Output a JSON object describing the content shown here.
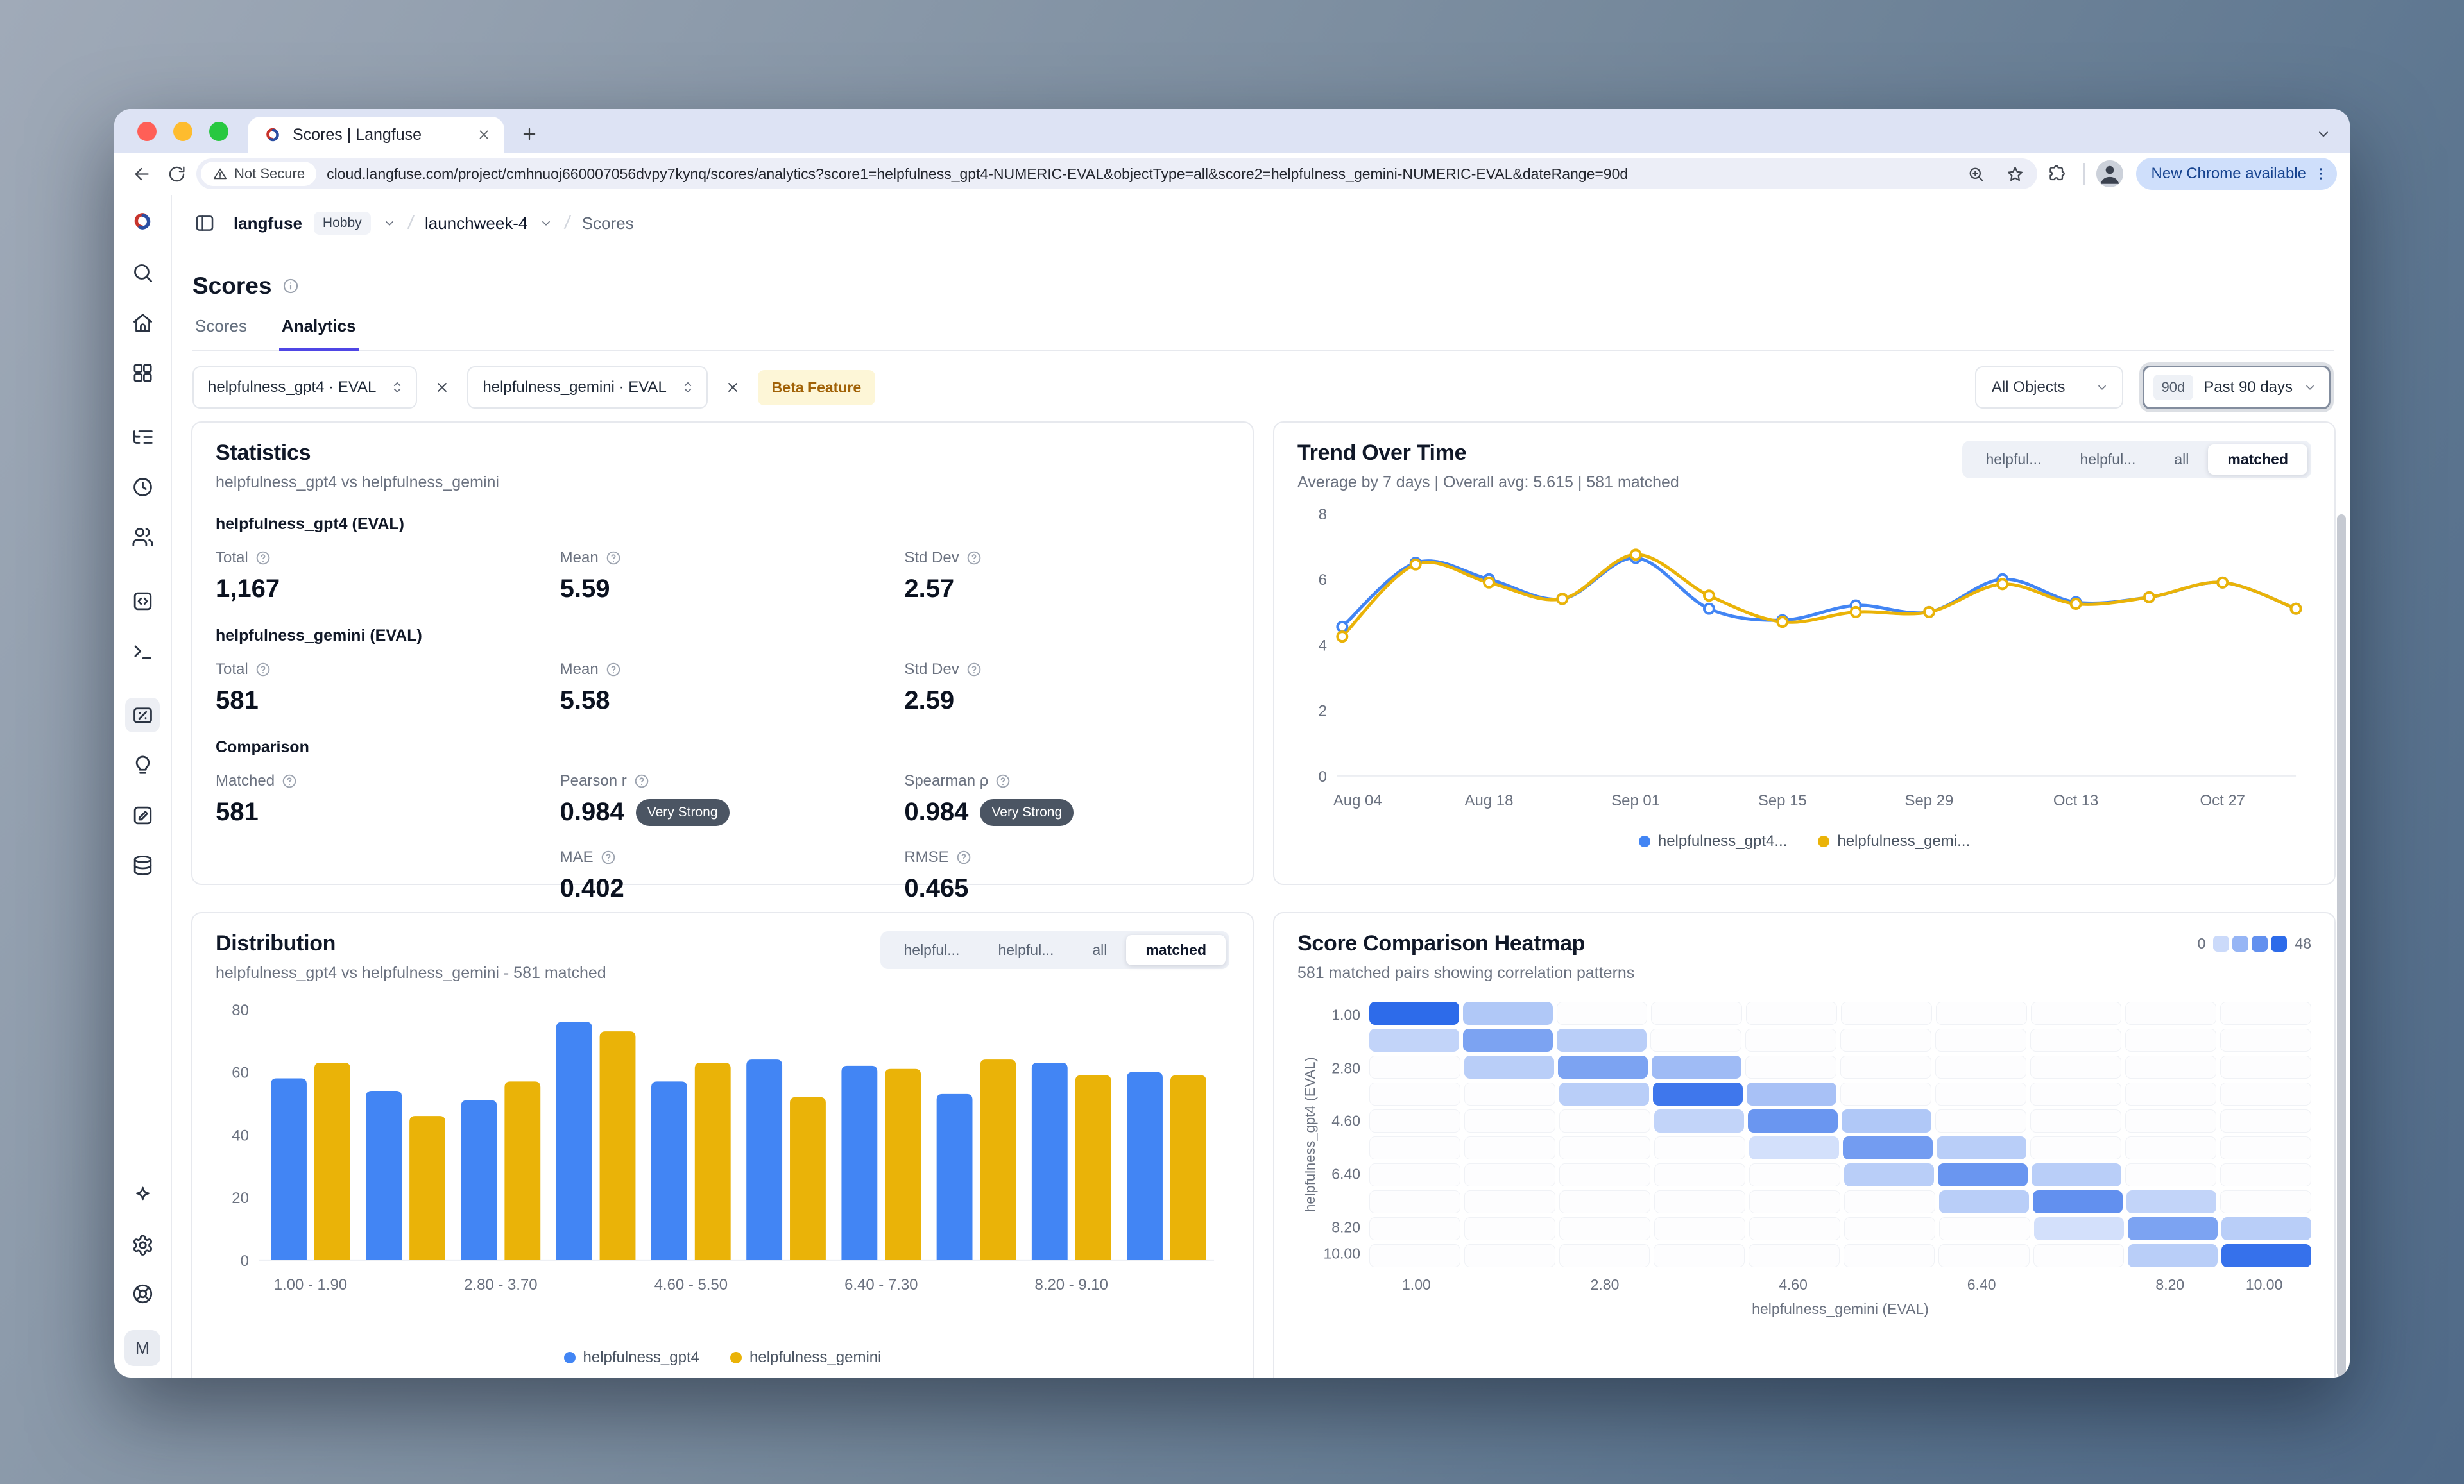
{
  "colors": {
    "blue": "#4285F4",
    "yellow": "#EAB308",
    "accent": "#4F46E5",
    "heatmap_base": "#2D6BEA"
  },
  "browser": {
    "tab": {
      "title": "Scores | Langfuse"
    },
    "url": {
      "security": "Not Secure",
      "address": "cloud.langfuse.com/project/cmhnuoj660007056dvpy7kynq/scores/analytics?score1=helpfulness_gpt4-NUMERIC-EVAL&objectType=all&score2=helpfulness_gemini-NUMERIC-EVAL&dateRange=90d"
    },
    "update_pill": "New Chrome available"
  },
  "app": {
    "breadcrumb": {
      "org": "langfuse",
      "plan_badge": "Hobby",
      "project": "launchweek-4",
      "page": "Scores"
    },
    "sidebar": {
      "items": [
        {
          "name": "search"
        },
        {
          "name": "home"
        },
        {
          "name": "dashboards"
        },
        {
          "name": "tracing",
          "group_start": true
        },
        {
          "name": "sessions"
        },
        {
          "name": "users"
        },
        {
          "name": "prompts",
          "group_start": true
        },
        {
          "name": "playground"
        },
        {
          "name": "scores",
          "group_start": true,
          "active": true
        },
        {
          "name": "evaluators"
        },
        {
          "name": "annotation"
        },
        {
          "name": "datasets"
        }
      ],
      "bottom": [
        {
          "name": "sparkle"
        },
        {
          "name": "settings"
        },
        {
          "name": "support"
        }
      ],
      "avatar": "M"
    },
    "page": {
      "title": "Scores",
      "tabs": [
        {
          "label": "Scores",
          "active": false
        },
        {
          "label": "Analytics",
          "active": true
        }
      ],
      "filters": {
        "score1": "helpfulness_gpt4 · EVAL",
        "score2": "helpfulness_gemini · EVAL",
        "beta_badge": "Beta Feature",
        "object_select": "All Objects",
        "date_range": {
          "shortcut": "90d",
          "label": "Past 90 days"
        }
      }
    },
    "statistics": {
      "title": "Statistics",
      "subtitle": "helpfulness_gpt4 vs helpfulness_gemini",
      "sections": [
        {
          "heading": "helpfulness_gpt4 (EVAL)",
          "metrics": [
            {
              "label": "Total",
              "value": "1,167"
            },
            {
              "label": "Mean",
              "value": "5.59"
            },
            {
              "label": "Std Dev",
              "value": "2.57"
            }
          ]
        },
        {
          "heading": "helpfulness_gemini (EVAL)",
          "metrics": [
            {
              "label": "Total",
              "value": "581"
            },
            {
              "label": "Mean",
              "value": "5.58"
            },
            {
              "label": "Std Dev",
              "value": "2.59"
            }
          ]
        },
        {
          "heading": "Comparison",
          "metrics": [
            {
              "label": "Matched",
              "value": "581"
            },
            {
              "label": "Pearson r",
              "value": "0.984",
              "badge": "Very Strong"
            },
            {
              "label": "Spearman ρ",
              "value": "0.984",
              "badge": "Very Strong"
            },
            {
              "label": "",
              "value": ""
            },
            {
              "label": "MAE",
              "value": "0.402"
            },
            {
              "label": "RMSE",
              "value": "0.465"
            }
          ]
        }
      ]
    },
    "trend": {
      "title": "Trend Over Time",
      "subtitle": "Average by 7 days | Overall avg: 5.615 | 581 matched",
      "segments": [
        "helpful...",
        "helpful...",
        "all",
        "matched"
      ],
      "selected_segment": "matched",
      "legend": [
        "helpfulness_gpt4...",
        "helpfulness_gemi..."
      ]
    },
    "distribution": {
      "title": "Distribution",
      "subtitle": "helpfulness_gpt4 vs helpfulness_gemini - 581 matched",
      "segments": [
        "helpful...",
        "helpful...",
        "all",
        "matched"
      ],
      "selected_segment": "matched",
      "legend": [
        "helpfulness_gpt4",
        "helpfulness_gemini"
      ]
    },
    "heatmap": {
      "title": "Score Comparison Heatmap",
      "subtitle": "581 matched pairs showing correlation patterns",
      "scale": {
        "min": "0",
        "max": "48"
      }
    }
  },
  "chart_data": [
    {
      "type": "line",
      "title": "Trend Over Time",
      "x": [
        "Aug 04",
        "Aug 11",
        "Aug 18",
        "Aug 25",
        "Sep 01",
        "Sep 08",
        "Sep 15",
        "Sep 22",
        "Sep 29",
        "Oct 06",
        "Oct 13",
        "Oct 20",
        "Oct 27",
        "Nov 03"
      ],
      "xticks_shown": [
        "Aug 04",
        "Aug 18",
        "Sep 01",
        "Sep 15",
        "Sep 29",
        "Oct 13",
        "Oct 27"
      ],
      "yticks": [
        0,
        2,
        4,
        6,
        8
      ],
      "ylim": [
        0,
        8
      ],
      "series": [
        {
          "name": "helpfulness_gpt4",
          "color": "#4285F4",
          "values": [
            4.55,
            6.5,
            6.0,
            5.4,
            6.65,
            5.1,
            4.75,
            5.2,
            5.0,
            6.0,
            5.3,
            5.45,
            5.9,
            5.1
          ]
        },
        {
          "name": "helpfulness_gemini",
          "color": "#EAB308",
          "values": [
            4.25,
            6.45,
            5.9,
            5.4,
            6.75,
            5.5,
            4.7,
            5.0,
            5.0,
            5.85,
            5.25,
            5.45,
            5.9,
            5.1
          ]
        }
      ]
    },
    {
      "type": "bar",
      "title": "Distribution",
      "categories": [
        "1.00 - 1.90",
        "1.90 - 2.80",
        "2.80 - 3.70",
        "3.70 - 4.60",
        "4.60 - 5.50",
        "5.50 - 6.40",
        "6.40 - 7.30",
        "7.30 - 8.20",
        "8.20 - 9.10",
        "9.10 - 10.00"
      ],
      "xticks_shown": [
        "1.00 - 1.90",
        "2.80 - 3.70",
        "4.60 - 5.50",
        "6.40 - 7.30",
        "8.20 - 9.10"
      ],
      "yticks": [
        0,
        20,
        40,
        60,
        80
      ],
      "ylim": [
        0,
        80
      ],
      "series": [
        {
          "name": "helpfulness_gpt4",
          "color": "#4285F4",
          "values": [
            58,
            54,
            51,
            76,
            57,
            64,
            62,
            53,
            63,
            60
          ]
        },
        {
          "name": "helpfulness_gemini",
          "color": "#EAB308",
          "values": [
            63,
            46,
            57,
            73,
            63,
            52,
            61,
            64,
            59,
            59
          ]
        }
      ]
    },
    {
      "type": "heatmap",
      "title": "Score Comparison Heatmap",
      "xlabel": "helpfulness_gemini (EVAL)",
      "ylabel": "helpfulness_gpt4 (EVAL)",
      "ticks": [
        "1.00",
        "2.80",
        "4.60",
        "6.40",
        "8.20",
        "10.00"
      ],
      "vmin": 0,
      "vmax": 48,
      "matrix": [
        [
          48,
          18,
          0,
          0,
          0,
          0,
          0,
          0,
          0,
          0
        ],
        [
          14,
          30,
          16,
          0,
          0,
          0,
          0,
          0,
          0,
          0
        ],
        [
          0,
          16,
          30,
          22,
          0,
          0,
          0,
          0,
          0,
          0
        ],
        [
          0,
          0,
          16,
          44,
          20,
          0,
          0,
          0,
          0,
          0
        ],
        [
          0,
          0,
          0,
          14,
          34,
          18,
          0,
          0,
          0,
          0
        ],
        [
          0,
          0,
          0,
          0,
          10,
          32,
          16,
          0,
          0,
          0
        ],
        [
          0,
          0,
          0,
          0,
          0,
          16,
          34,
          16,
          0,
          0
        ],
        [
          0,
          0,
          0,
          0,
          0,
          0,
          16,
          36,
          14,
          0
        ],
        [
          0,
          0,
          0,
          0,
          0,
          0,
          0,
          10,
          30,
          16
        ],
        [
          0,
          0,
          0,
          0,
          0,
          0,
          0,
          0,
          16,
          46
        ]
      ]
    }
  ]
}
